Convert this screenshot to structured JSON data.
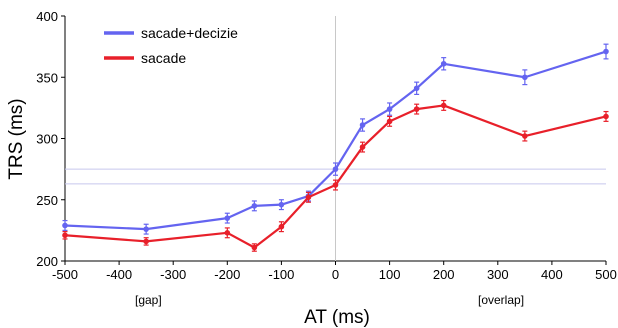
{
  "chart_data": {
    "type": "line",
    "title": "",
    "xlabel": "AT (ms)",
    "ylabel": "TRS (ms)",
    "xlim": [
      -500,
      500
    ],
    "ylim": [
      200,
      400
    ],
    "x_ticks": [
      "-500",
      "-400",
      "-300",
      "-200",
      "-100",
      "0",
      "100",
      "200",
      "300",
      "400",
      "500"
    ],
    "y_ticks": [
      "200",
      "250",
      "300",
      "350",
      "400"
    ],
    "annotations": {
      "left": "[gap]",
      "right": "[overlap]"
    },
    "legend_position": "top-left",
    "grid": false,
    "reference_lines": {
      "vertical_x": 0,
      "horizontal_y": [
        275,
        263
      ]
    },
    "series": [
      {
        "name": "sacade+decizie",
        "color": "#6464f0",
        "x": [
          -500,
          -350,
          -200,
          -150,
          -100,
          -50,
          0,
          50,
          100,
          150,
          200,
          350,
          500
        ],
        "y": [
          229,
          226,
          235,
          245,
          246,
          253,
          275,
          311,
          324,
          341,
          361,
          350,
          371
        ],
        "err": [
          4,
          4,
          4,
          4,
          4,
          4,
          5,
          5,
          5,
          5,
          5,
          6,
          6
        ]
      },
      {
        "name": "sacade",
        "color": "#e8202a",
        "x": [
          -500,
          -350,
          -200,
          -150,
          -100,
          -50,
          0,
          50,
          100,
          150,
          200,
          350,
          500
        ],
        "y": [
          221,
          216,
          223,
          211,
          228,
          252,
          262,
          293,
          314,
          324,
          327,
          302,
          318
        ],
        "err": [
          3,
          3,
          4,
          3,
          4,
          4,
          4,
          4,
          4,
          4,
          4,
          4,
          4
        ]
      }
    ]
  }
}
